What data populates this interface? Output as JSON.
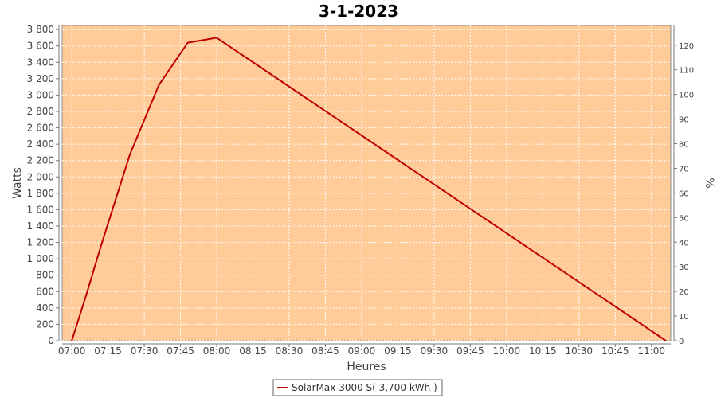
{
  "chart_data": {
    "type": "line",
    "title": "3-1-2023",
    "xlabel": "Heures",
    "ylabel": "Watts",
    "y2label": "%",
    "x_tick_labels": [
      "07:00",
      "07:15",
      "07:30",
      "07:45",
      "08:00",
      "08:15",
      "08:30",
      "08:45",
      "09:00",
      "09:15",
      "09:30",
      "09:45",
      "10:00",
      "10:15",
      "10:30",
      "10:45",
      "11:00"
    ],
    "y_tick_labels": [
      "0",
      "200",
      "400",
      "600",
      "800",
      "1 000",
      "1 200",
      "1 400",
      "1 600",
      "1 800",
      "2 000",
      "2 200",
      "2 400",
      "2 600",
      "2 800",
      "3 000",
      "3 200",
      "3 400",
      "3 600",
      "3 800"
    ],
    "y2_tick_labels": [
      "0",
      "10",
      "20",
      "30",
      "40",
      "50",
      "60",
      "70",
      "80",
      "90",
      "100",
      "110",
      "120"
    ],
    "xlim": [
      "06:56",
      "11:08"
    ],
    "ylim": [
      0,
      3850
    ],
    "y2lim": [
      0,
      128
    ],
    "grid": true,
    "colors": {
      "plot_background": "#ffcc99",
      "series": "#c00000",
      "grid": "#ffffff"
    },
    "legend_position": "bottom-center",
    "series": [
      {
        "name": "SolarMax 3000 S( 3,700 kWh )",
        "x": [
          "07:00",
          "07:06",
          "07:12",
          "07:24",
          "07:36",
          "07:48",
          "08:00",
          "11:06"
        ],
        "y": [
          0,
          560,
          1150,
          2270,
          3120,
          3640,
          3700,
          0
        ]
      }
    ]
  }
}
